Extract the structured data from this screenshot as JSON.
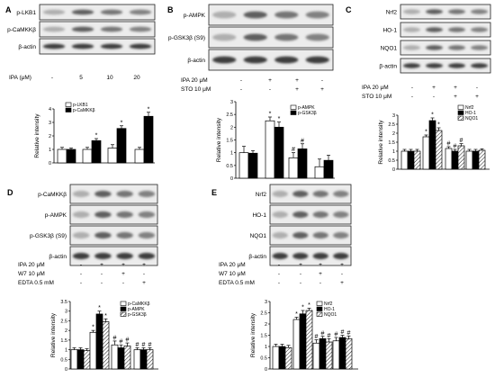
{
  "chart_data": [
    {
      "panel": "A",
      "type": "bar",
      "blot_labels": [
        "p-LKB1",
        "p-CaMKKβ",
        "β-actin"
      ],
      "condition_rows": [
        {
          "label": "IPA (μM)",
          "values": [
            "-",
            "5",
            "10",
            "20"
          ]
        }
      ],
      "ylabel": "Relative intensity",
      "ylim": [
        0,
        4
      ],
      "yticks": [
        "0",
        "1",
        "2",
        "3",
        "4"
      ],
      "series": [
        {
          "name": "p-LKB1",
          "fill": "white",
          "values": [
            1.0,
            1.0,
            1.1,
            1.0
          ],
          "errors": [
            0.15,
            0.15,
            0.25,
            0.15
          ]
        },
        {
          "name": "p-CaMKKβ",
          "fill": "black",
          "values": [
            1.0,
            1.65,
            2.55,
            3.45
          ],
          "errors": [
            0.1,
            0.15,
            0.2,
            0.3
          ]
        }
      ],
      "annotations": [
        "",
        "*",
        "*",
        "*"
      ]
    },
    {
      "panel": "B",
      "type": "bar",
      "blot_labels": [
        "p-AMPK",
        "p-GSK3β (S9)",
        "β-actin"
      ],
      "condition_rows": [
        {
          "label": "IPA 20 μM",
          "values": [
            "-",
            "+",
            "+",
            "-"
          ]
        },
        {
          "label": "STO 10 μM",
          "values": [
            "-",
            "-",
            "+",
            "+"
          ]
        }
      ],
      "ylabel": "Relative intensity",
      "ylim": [
        0,
        3.0
      ],
      "yticks": [
        "0",
        "0.5",
        "1",
        "1.5",
        "2",
        "2.5",
        "3"
      ],
      "series": [
        {
          "name": "p-AMPK",
          "fill": "white",
          "values": [
            1.0,
            2.25,
            0.8,
            0.45
          ],
          "errors": [
            0.25,
            0.15,
            0.2,
            0.3
          ]
        },
        {
          "name": "p-GSK3β",
          "fill": "black",
          "values": [
            0.98,
            2.0,
            1.15,
            0.7
          ],
          "errors": [
            0.1,
            0.2,
            0.2,
            0.2
          ]
        }
      ],
      "annotations": [
        [
          "",
          ""
        ],
        [
          "*",
          "*"
        ],
        [
          "#",
          "#"
        ],
        [
          "",
          ""
        ]
      ]
    },
    {
      "panel": "C",
      "type": "bar",
      "blot_labels": [
        "Nrf2",
        "HO-1",
        "NQO1",
        "β-actin"
      ],
      "condition_rows": [
        {
          "label": "IPA 20 μM",
          "values": [
            "-",
            "+",
            "+",
            "-"
          ]
        },
        {
          "label": "STO 10 μM",
          "values": [
            "-",
            "-",
            "+",
            "+"
          ]
        }
      ],
      "ylabel": "Relative intensity",
      "ylim": [
        0,
        3.0
      ],
      "yticks": [
        "0",
        "0.5",
        "1",
        "1.5",
        "2",
        "2.5",
        "3"
      ],
      "series": [
        {
          "name": "Nrf2",
          "fill": "white",
          "values": [
            1.0,
            1.8,
            1.15,
            1.0
          ],
          "errors": [
            0.1,
            0.1,
            0.1,
            0.1
          ]
        },
        {
          "name": "HO-1",
          "fill": "black",
          "values": [
            1.0,
            2.7,
            1.0,
            1.0
          ],
          "errors": [
            0.1,
            0.15,
            0.1,
            0.1
          ]
        },
        {
          "name": "NQO1",
          "fill": "hatch",
          "values": [
            1.0,
            2.15,
            1.3,
            1.05
          ],
          "errors": [
            0.1,
            0.15,
            0.12,
            0.08
          ]
        }
      ],
      "annotations": [
        [
          "",
          "",
          ""
        ],
        [
          "*",
          "*",
          "*"
        ],
        [
          "#",
          "#",
          "#"
        ],
        [
          "",
          "",
          ""
        ]
      ]
    },
    {
      "panel": "D",
      "type": "bar",
      "blot_labels": [
        "p-CaMKKβ",
        "p-AMPK",
        "p-GSK3β (S9)",
        "β-actin"
      ],
      "condition_rows": [
        {
          "label": "IPA 20 μM",
          "values": [
            "-",
            "+",
            "+",
            "+"
          ]
        },
        {
          "label": "W7 10 μM",
          "values": [
            "-",
            "-",
            "+",
            "-"
          ]
        },
        {
          "label": "EDTA 0.5 mM",
          "values": [
            "-",
            "-",
            "-",
            "+"
          ]
        }
      ],
      "ylabel": "Relative intensity",
      "ylim": [
        0,
        3.5
      ],
      "yticks": [
        "0",
        "0.5",
        "1",
        "1.5",
        "2",
        "2.5",
        "3",
        "3.5"
      ],
      "series": [
        {
          "name": "p-CaMKKβ",
          "fill": "white",
          "values": [
            1.0,
            1.9,
            1.25,
            1.0
          ],
          "errors": [
            0.1,
            0.1,
            0.2,
            0.1
          ]
        },
        {
          "name": "p-AMPK",
          "fill": "black",
          "values": [
            1.0,
            2.85,
            1.1,
            1.0
          ],
          "errors": [
            0.1,
            0.15,
            0.15,
            0.1
          ]
        },
        {
          "name": "p-GSK3β",
          "fill": "hatch",
          "values": [
            0.95,
            2.45,
            1.2,
            1.0
          ],
          "errors": [
            0.1,
            0.15,
            0.15,
            0.1
          ]
        }
      ],
      "annotations": [
        [
          "",
          "",
          ""
        ],
        [
          "*",
          "*",
          "*"
        ],
        [
          "#",
          "#",
          "#"
        ],
        [
          "#",
          "#",
          "#"
        ]
      ]
    },
    {
      "panel": "E",
      "type": "bar",
      "blot_labels": [
        "Nrf2",
        "HO-1",
        "NQO1",
        "β-actin"
      ],
      "condition_rows": [
        {
          "label": "IPA 20 μM",
          "values": [
            "-",
            "+",
            "+",
            "+"
          ]
        },
        {
          "label": "W7 10 μM",
          "values": [
            "-",
            "-",
            "+",
            "-"
          ]
        },
        {
          "label": "EDTA 0.5 mM",
          "values": [
            "-",
            "-",
            "-",
            "+"
          ]
        }
      ],
      "ylabel": "Relative intensity",
      "ylim": [
        0,
        3.0
      ],
      "yticks": [
        "0",
        "0.5",
        "1",
        "1.5",
        "2",
        "2.5",
        "3"
      ],
      "series": [
        {
          "name": "Nrf2",
          "fill": "white",
          "values": [
            1.0,
            2.2,
            1.15,
            1.25
          ],
          "errors": [
            0.1,
            0.1,
            0.15,
            0.15
          ]
        },
        {
          "name": "HO-1",
          "fill": "black",
          "values": [
            1.0,
            2.45,
            1.35,
            1.4
          ],
          "errors": [
            0.1,
            0.15,
            0.1,
            0.1
          ]
        },
        {
          "name": "NQO1",
          "fill": "hatch",
          "values": [
            0.95,
            2.6,
            1.2,
            1.35
          ],
          "errors": [
            0.1,
            0.1,
            0.15,
            0.12
          ]
        }
      ],
      "annotations": [
        [
          "",
          "",
          ""
        ],
        [
          "*",
          "*",
          "*"
        ],
        [
          "#",
          "#",
          "#"
        ],
        [
          "#",
          "#",
          "#"
        ]
      ]
    }
  ]
}
